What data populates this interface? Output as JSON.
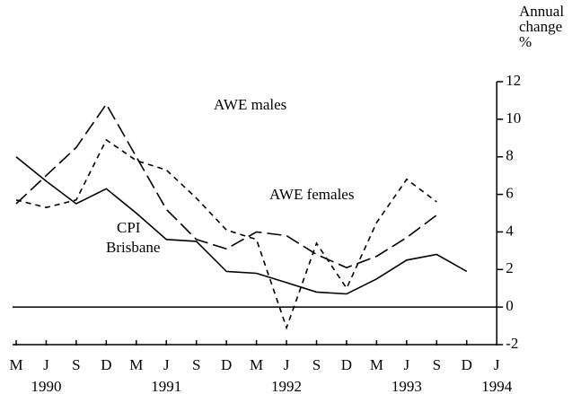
{
  "chart_data": {
    "type": "line",
    "y_axis_label": "Annual change %",
    "categories": [
      "M",
      "J",
      "S",
      "D",
      "M",
      "J",
      "S",
      "D",
      "M",
      "J",
      "S",
      "D",
      "M",
      "J",
      "S",
      "D",
      "J"
    ],
    "x_groups": [
      {
        "label": "1990",
        "category": 1
      },
      {
        "label": "1991",
        "category": 5
      },
      {
        "label": "1992",
        "category": 9
      },
      {
        "label": "1993",
        "category": 13
      },
      {
        "label": "1994",
        "category": 16
      }
    ],
    "series": [
      {
        "name": "AWE males",
        "color": "#000000",
        "dash": "long",
        "values": [
          5.5,
          7.0,
          8.5,
          10.8,
          8.0,
          5.2,
          3.6,
          3.1,
          4.0,
          3.8,
          2.8,
          2.1,
          2.7,
          3.7,
          4.9,
          null,
          null
        ]
      },
      {
        "name": "AWE females",
        "color": "#000000",
        "dash": "short",
        "values": [
          5.7,
          5.3,
          5.7,
          8.9,
          7.8,
          7.3,
          5.8,
          4.1,
          3.6,
          -1.1,
          3.4,
          1.0,
          4.5,
          6.8,
          5.6,
          null,
          null
        ]
      },
      {
        "name": "CPI Brisbane",
        "color": "#000000",
        "dash": "solid",
        "values": [
          8.0,
          6.7,
          5.5,
          6.3,
          5.0,
          3.6,
          3.5,
          1.9,
          1.8,
          1.3,
          0.8,
          0.7,
          1.5,
          2.5,
          2.8,
          1.9,
          null
        ]
      }
    ],
    "ylim": [
      -2,
      12
    ],
    "yticks": [
      -2,
      0,
      2,
      4,
      6,
      8,
      10,
      12
    ]
  }
}
